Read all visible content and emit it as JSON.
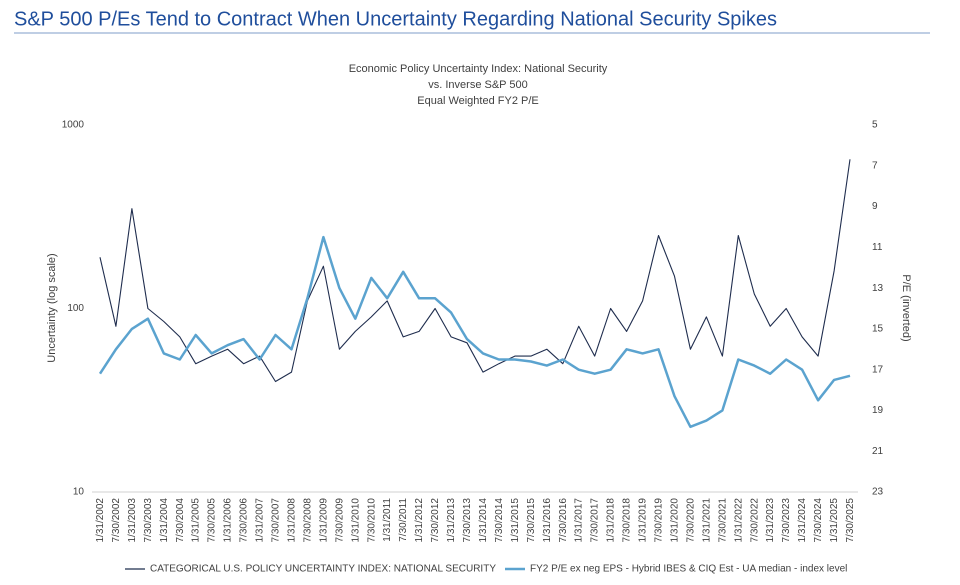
{
  "chart_data": {
    "type": "line",
    "page_title": "S&P 500 P/Es Tend to Contract When Uncertainty Regarding National Security Spikes",
    "title_lines": [
      "Economic Policy Uncertainty Index: National Security",
      "vs. Inverse S&P 500",
      "Equal Weighted FY2 P/E"
    ],
    "ylabel": "Uncertainty (log scale)",
    "y2label": "P/E (inverted)",
    "log_scale": true,
    "y2_inverted": true,
    "categories": [
      "1/31/2002",
      "7/30/2002",
      "1/31/2003",
      "7/30/2003",
      "1/31/2004",
      "7/30/2004",
      "1/31/2005",
      "7/30/2005",
      "1/31/2006",
      "7/30/2006",
      "1/31/2007",
      "7/30/2007",
      "1/31/2008",
      "7/30/2008",
      "1/31/2009",
      "7/30/2009",
      "1/31/2010",
      "7/30/2010",
      "1/31/2011",
      "7/30/2011",
      "1/31/2012",
      "7/30/2012",
      "1/31/2013",
      "7/30/2013",
      "1/31/2014",
      "7/30/2014",
      "1/31/2015",
      "7/30/2015",
      "1/31/2016",
      "7/30/2016",
      "1/31/2017",
      "7/30/2017",
      "1/31/2018",
      "7/30/2018",
      "1/31/2019",
      "7/30/2019",
      "1/31/2020",
      "7/30/2020",
      "1/31/2021",
      "7/30/2021",
      "1/31/2022",
      "7/30/2022",
      "1/31/2023",
      "7/30/2023",
      "1/31/2024",
      "7/30/2024",
      "1/31/2025",
      "7/30/2025"
    ],
    "series": [
      {
        "name": "CATEGORICAL U.S. POLICY UNCERTAINTY INDEX: NATIONAL SECURITY",
        "color": "#1f2d4e",
        "values": [
          190,
          80,
          350,
          100,
          85,
          70,
          50,
          55,
          60,
          50,
          55,
          40,
          45,
          110,
          170,
          60,
          75,
          90,
          110,
          70,
          75,
          100,
          70,
          65,
          45,
          50,
          55,
          55,
          60,
          50,
          80,
          55,
          100,
          75,
          110,
          250,
          150,
          60,
          90,
          55,
          250,
          120,
          80,
          100,
          70,
          55,
          160,
          650
        ]
      },
      {
        "name": "FY2 P/E ex neg EPS - Hybrid IBES & CIQ Est - UA median - index level",
        "color": "#5ba3cf",
        "axis": "y2",
        "values": [
          17.2,
          16.0,
          15.0,
          14.5,
          16.2,
          16.5,
          15.3,
          16.2,
          15.8,
          15.5,
          16.5,
          15.3,
          16.0,
          13.5,
          10.5,
          13.0,
          14.5,
          12.5,
          13.5,
          12.2,
          13.5,
          13.5,
          14.2,
          15.5,
          16.2,
          16.5,
          16.5,
          16.6,
          16.8,
          16.5,
          17.0,
          17.2,
          17.0,
          16.0,
          16.2,
          16.0,
          18.3,
          19.8,
          19.5,
          19.0,
          16.5,
          16.8,
          17.2,
          16.5,
          17.0,
          18.5,
          17.5,
          17.3
        ]
      }
    ],
    "ylim": [
      10,
      1000
    ],
    "yticks": [
      10,
      100,
      1000
    ],
    "y2lim": [
      5,
      23
    ],
    "y2ticks": [
      5,
      7,
      9,
      11,
      13,
      15,
      17,
      19,
      21,
      23
    ]
  }
}
